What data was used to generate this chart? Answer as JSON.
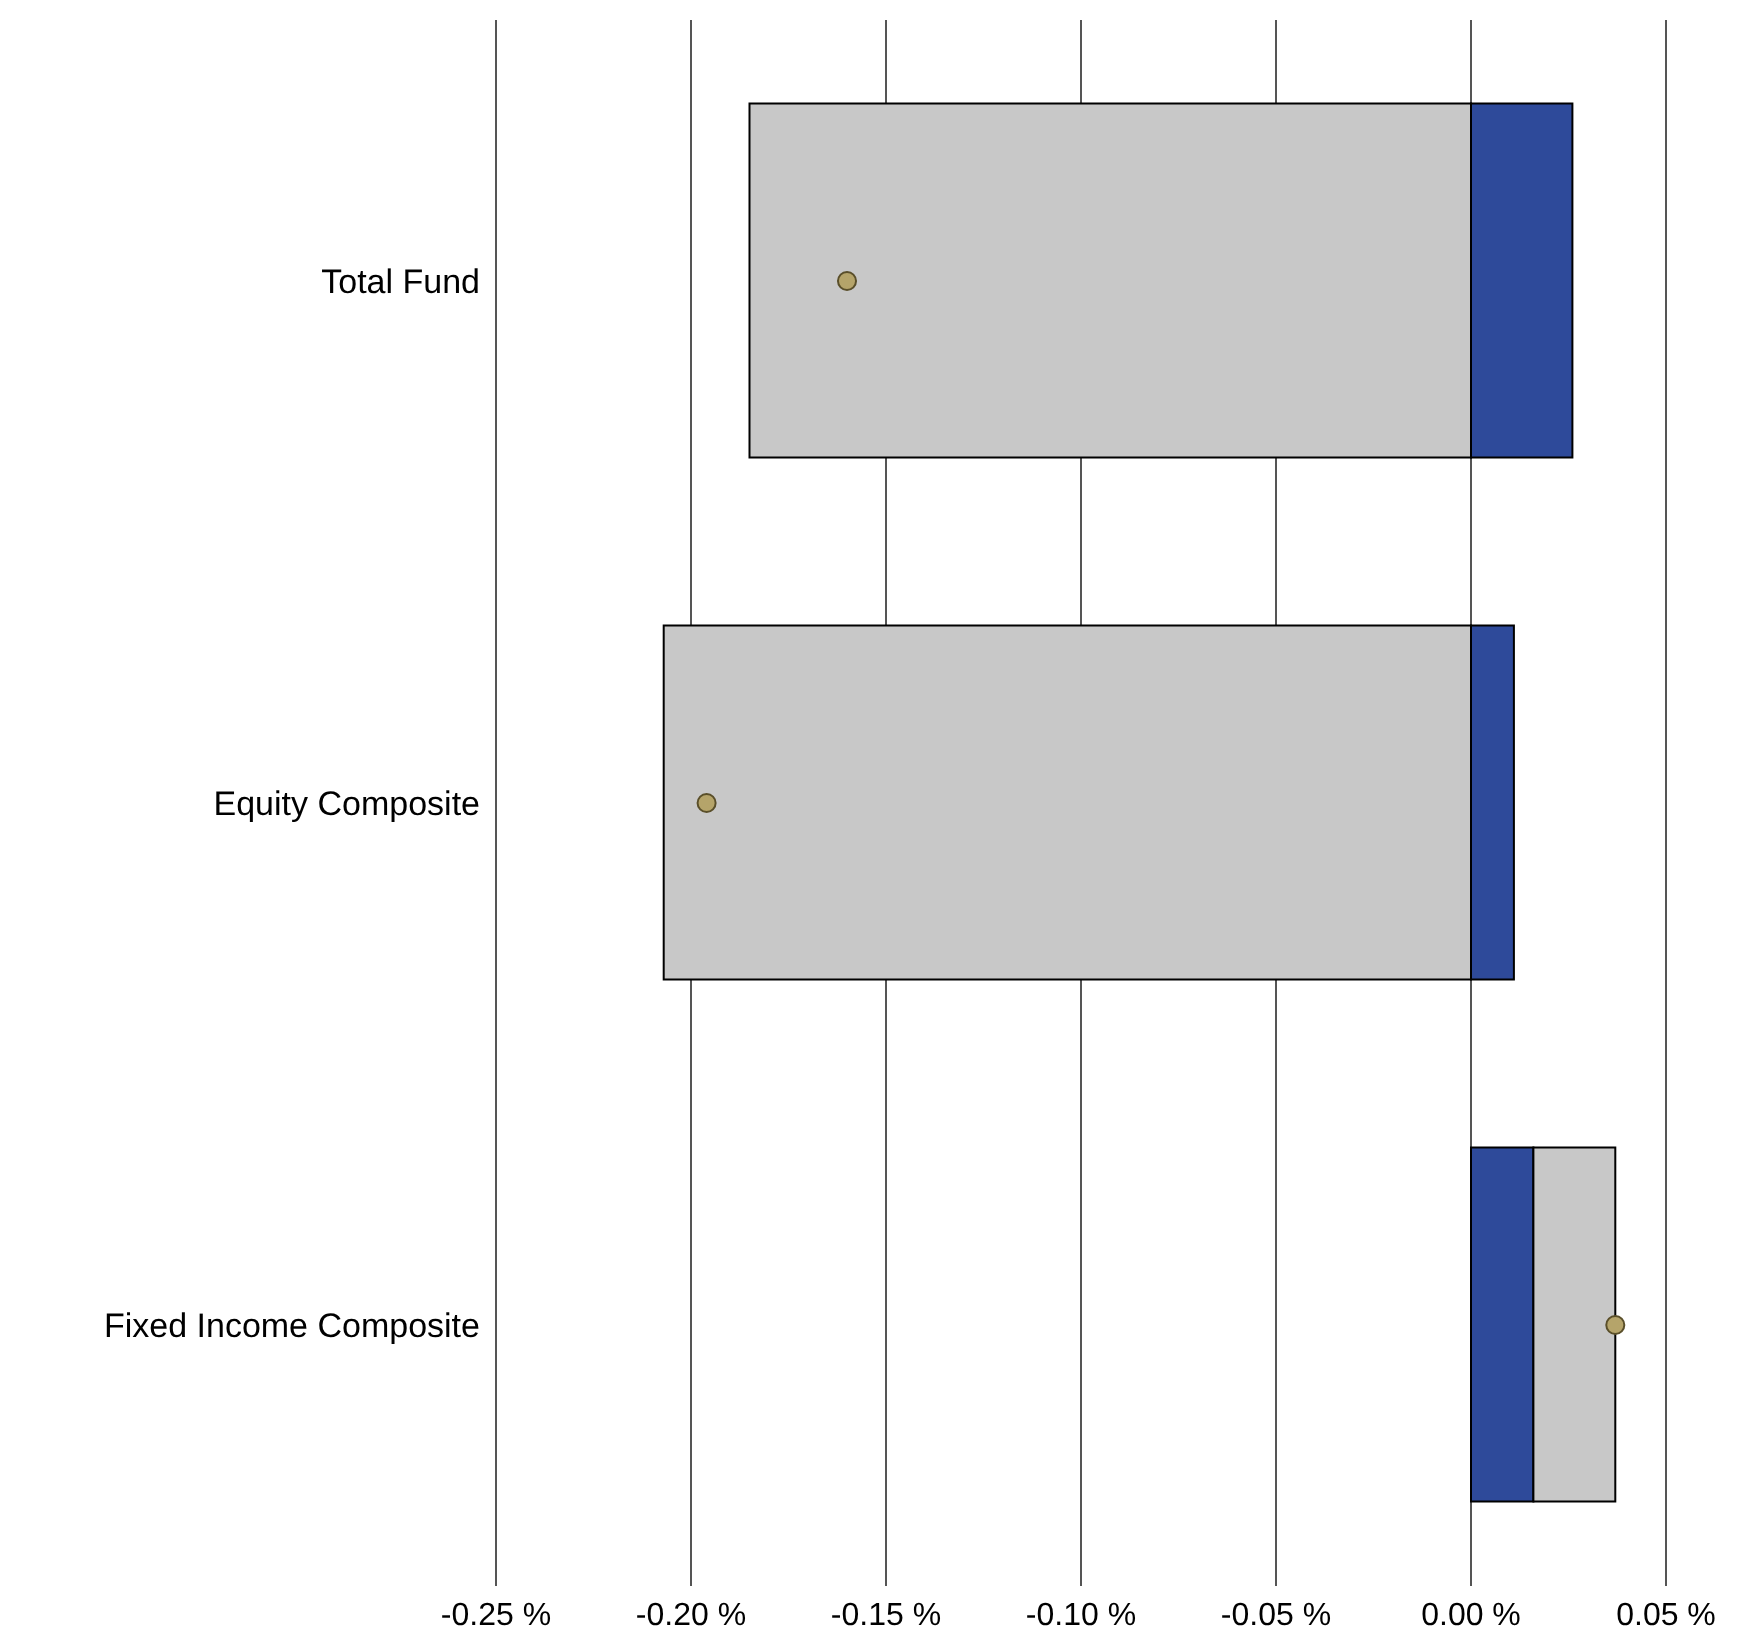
{
  "chart_data": {
    "type": "bar",
    "orientation": "horizontal",
    "stacked": true,
    "categories": [
      "Total Fund",
      "Equity Composite",
      "Fixed Income Composite"
    ],
    "series": [
      {
        "color": "#2e4a9a",
        "values": [
          0.026,
          0.011,
          0.016
        ]
      },
      {
        "color": "#c8c8c8",
        "values": [
          -0.185,
          -0.207,
          0.021
        ]
      },
      {
        "type": "scatter",
        "color": "#b5a46a",
        "values": [
          -0.16,
          -0.196,
          0.037
        ]
      }
    ],
    "xlim": [
      -0.25,
      0.05
    ],
    "xticks": [
      {
        "value": -0.25,
        "label": "-0.25 %"
      },
      {
        "value": -0.2,
        "label": "-0.20 %"
      },
      {
        "value": -0.15,
        "label": "-0.15 %"
      },
      {
        "value": -0.1,
        "label": "-0.10 %"
      },
      {
        "value": -0.05,
        "label": "-0.05 %"
      },
      {
        "value": 0,
        "label": "0.00 %"
      },
      {
        "value": 0.05,
        "label": "0.05 %"
      }
    ],
    "grid": "x",
    "marker": "circle",
    "legend": false
  }
}
